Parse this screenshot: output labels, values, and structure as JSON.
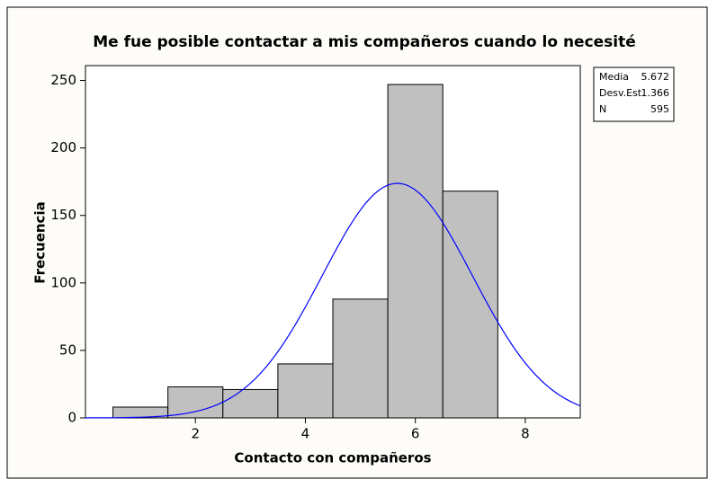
{
  "chart_data": {
    "type": "histogram",
    "title": "Me fue posible contactar a mis compañeros cuando lo necesité",
    "x_label": "Contacto con compañeros",
    "y_label": "Frecuencia",
    "bins": [
      0.5,
      1.5,
      2.5,
      3.5,
      4.5,
      5.5,
      6.5,
      7.5
    ],
    "values": [
      8,
      23,
      21,
      40,
      88,
      247,
      168
    ],
    "color": "#c0c0c0",
    "curve_color": "#0000ff",
    "xlim": [
      0,
      9
    ],
    "xticks": [
      2,
      4,
      6,
      8
    ],
    "ylim": [
      0,
      261
    ],
    "yticks": [
      0,
      50,
      100,
      150,
      200,
      250
    ],
    "stats": [
      {
        "label": "Media",
        "value": 5.672
      },
      {
        "label": "Desv.Est.",
        "value": 1.366
      },
      {
        "label": "N",
        "value": 595
      }
    ]
  }
}
